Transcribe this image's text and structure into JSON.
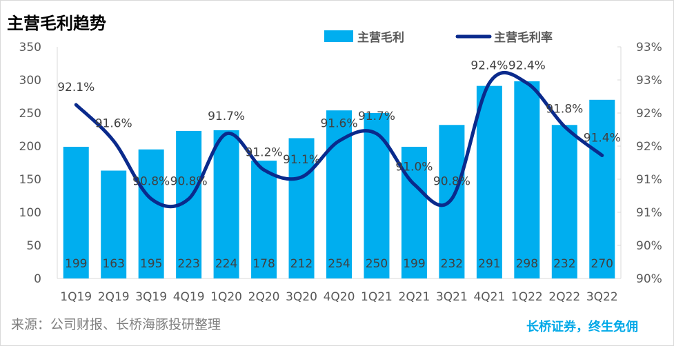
{
  "title": "主营毛利趋势",
  "source": "来源：公司财报、长桥海豚投研整理",
  "slogan": "长桥证券，终生免佣",
  "chart_data": {
    "type": "bar+line",
    "title": "主营毛利趋势",
    "categories": [
      "1Q19",
      "2Q19",
      "3Q19",
      "4Q19",
      "1Q20",
      "2Q20",
      "3Q20",
      "4Q20",
      "1Q21",
      "2Q21",
      "3Q21",
      "4Q21",
      "1Q22",
      "2Q22",
      "3Q22"
    ],
    "series": [
      {
        "name": "主营毛利",
        "type": "bar",
        "axis": "left",
        "color": "#00aeef",
        "values": [
          199,
          163,
          195,
          223,
          224,
          178,
          212,
          254,
          250,
          199,
          232,
          291,
          298,
          232,
          270
        ]
      },
      {
        "name": "主营毛利率",
        "type": "line",
        "axis": "right",
        "color": "#0a2a8c",
        "smooth": true,
        "values": [
          92.1,
          91.6,
          90.8,
          90.8,
          91.7,
          91.2,
          91.1,
          91.6,
          91.7,
          91.0,
          90.8,
          92.4,
          92.4,
          91.8,
          91.4
        ],
        "labels": [
          "92.1%",
          "91.6%",
          "90.8%",
          "90.8%",
          "91.7%",
          "91.2%",
          "91.1%",
          "91.6%",
          "91.7%",
          "91.0%",
          "90.8%",
          "92.4%",
          "92.4%",
          "91.8%",
          "91.4%"
        ]
      }
    ],
    "y_left": {
      "ylim": [
        0,
        350
      ],
      "ticks": [
        "0",
        "50",
        "100",
        "150",
        "200",
        "250",
        "300",
        "350"
      ]
    },
    "y_right": {
      "ylim": [
        89.7,
        92.9
      ],
      "ticks": [
        "90%",
        "90%",
        "91%",
        "91%",
        "92%",
        "92%",
        "93%",
        "93%"
      ]
    },
    "legend": {
      "placement": "top",
      "entries": [
        "主营毛利",
        "主营毛利率"
      ]
    },
    "grid": false
  }
}
